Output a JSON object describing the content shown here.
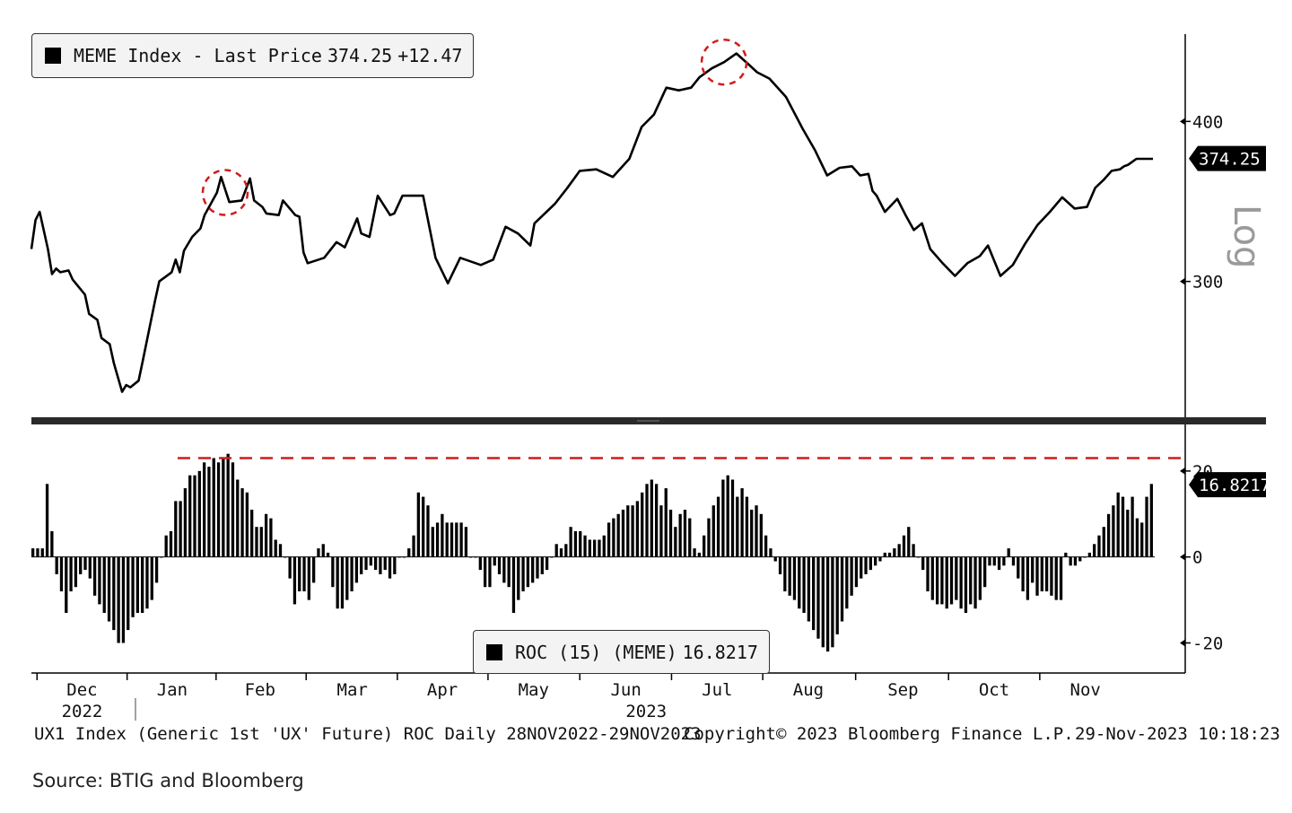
{
  "chart_data": [
    {
      "type": "line",
      "scale": "log",
      "title": "MEME Index - Last Price",
      "legend": {
        "name": "MEME Index - Last Price",
        "last": "374.25",
        "change": "+12.47"
      },
      "last_label": "374.25",
      "yticks": [
        300,
        400
      ],
      "ylim": [
        235,
        468
      ],
      "y_axis_label": "Log",
      "series": [
        {
          "name": "MEME Index",
          "x": [
            0,
            1,
            2,
            4,
            5,
            6,
            7,
            9,
            10,
            13,
            14,
            16,
            17,
            19,
            20,
            22,
            23,
            24,
            26,
            27,
            30,
            31,
            34,
            35,
            36,
            37,
            39,
            41,
            42,
            45,
            46,
            48,
            51,
            53,
            54,
            56,
            57,
            60,
            61,
            63,
            64,
            65,
            66,
            67,
            71,
            74,
            76,
            79,
            80,
            82,
            84,
            87,
            88,
            90,
            95,
            98,
            101,
            104,
            109,
            112,
            115,
            118,
            121,
            122,
            127,
            130,
            133,
            137,
            141,
            145,
            148,
            151,
            154,
            157,
            160,
            162,
            165,
            168,
            171,
            174,
            176,
            179,
            183,
            187,
            190,
            193,
            196,
            199,
            201,
            203,
            204,
            205,
            207,
            210,
            212,
            214,
            216,
            218,
            221,
            224,
            227,
            230,
            232,
            235,
            238,
            241,
            244,
            247,
            250,
            253,
            256,
            258,
            260,
            262,
            264,
            265,
            266,
            267,
            268,
            269,
            270,
            271,
            272
          ],
          "y": [
            318,
            335,
            340,
            318,
            304,
            307,
            305,
            306,
            301,
            293,
            283,
            280,
            271,
            268,
            259,
            246,
            249,
            248,
            251,
            260,
            290,
            300,
            305,
            312,
            305,
            317,
            325,
            330,
            338,
            352,
            362,
            346,
            347,
            361,
            347,
            343,
            339,
            338,
            347,
            341,
            338,
            337,
            316,
            310,
            313,
            322,
            319,
            336,
            327,
            325,
            350,
            338,
            339,
            350,
            350,
            313,
            299,
            313,
            309,
            312,
            331,
            327,
            320,
            333,
            345,
            355,
            366,
            367,
            362,
            374,
            396,
            405,
            425,
            423,
            425,
            433,
            440,
            445,
            452,
            443,
            437,
            432,
            418,
            395,
            380,
            363,
            368,
            369,
            363,
            364,
            353,
            350,
            340,
            348,
            338,
            329,
            333,
            318,
            310,
            303,
            310,
            314,
            320,
            303,
            309,
            321,
            332,
            340,
            349,
            342,
            343,
            355,
            360,
            366,
            367,
            369,
            370,
            372,
            374,
            374,
            374,
            374,
            374
          ]
        }
      ],
      "annotations": [
        {
          "type": "circle",
          "x": 47,
          "y": 352
        },
        {
          "type": "circle",
          "x": 168,
          "y": 445
        }
      ]
    },
    {
      "type": "bar",
      "title": "ROC (15) (MEME)",
      "legend": {
        "name": "ROC (15) (MEME)",
        "value": "16.8217"
      },
      "last_label": "16.8217",
      "yticks": [
        -20,
        0,
        20
      ],
      "ylim": [
        -27,
        30
      ],
      "reference_line": 23,
      "series": [
        {
          "name": "ROC (15)",
          "values": [
            2,
            2,
            2,
            17,
            6,
            -4,
            -8,
            -13,
            -8,
            -7,
            -4,
            -3,
            -5,
            -9,
            -11,
            -13,
            -15,
            -17,
            -20,
            -20,
            -17,
            -14,
            -13,
            -13,
            -12,
            -10,
            -6,
            0,
            5,
            6,
            13,
            13,
            16,
            19,
            19,
            20,
            22,
            21,
            23,
            22,
            23,
            24,
            22,
            18,
            16,
            15,
            11,
            7,
            7,
            10,
            9,
            4,
            3,
            0,
            -5,
            -11,
            -8,
            -8,
            -10,
            -6,
            2,
            3,
            1,
            -7,
            -12,
            -12,
            -10,
            -8,
            -6,
            -4,
            -3,
            -2,
            -3,
            -4,
            -3,
            -5,
            -4,
            0,
            0,
            2,
            5,
            15,
            14,
            12,
            7,
            8,
            10,
            8,
            8,
            8,
            8,
            7,
            0,
            0,
            -3,
            -7,
            -7,
            -2,
            -4,
            -6,
            -7,
            -13,
            -10,
            -8,
            -7,
            -6,
            -5,
            -4,
            -3,
            0,
            3,
            2,
            3,
            7,
            6,
            6,
            5,
            4,
            4,
            4,
            5,
            8,
            9,
            10,
            11,
            12,
            12,
            13,
            15,
            17,
            18,
            17,
            12,
            16,
            11,
            7,
            10,
            11,
            9,
            2,
            1,
            5,
            9,
            12,
            14,
            18,
            19,
            18,
            14,
            16,
            14,
            11,
            12,
            10,
            5,
            2,
            -1,
            -4,
            -8,
            -9,
            -10,
            -12,
            -13,
            -15,
            -17,
            -19,
            -21,
            -22,
            -21,
            -18,
            -15,
            -12,
            -9,
            -7,
            -5,
            -4,
            -3,
            -2,
            -1,
            1,
            1,
            2,
            3,
            5,
            7,
            3,
            0,
            -3,
            -8,
            -10,
            -11,
            -11,
            -12,
            -11,
            -10,
            -12,
            -13,
            -11,
            -12,
            -10,
            -7,
            -2,
            -2,
            -3,
            -2,
            2,
            -2,
            -5,
            -8,
            -10,
            -6,
            -9,
            -8,
            -8,
            -9,
            -10,
            -10,
            1,
            -2,
            -2,
            -1,
            0,
            1,
            3,
            5,
            7,
            10,
            12,
            15,
            14,
            11,
            14,
            9,
            8,
            14,
            17
          ]
        }
      ]
    }
  ],
  "x_axis": {
    "months": [
      {
        "label": "Dec",
        "frac": 0.045
      },
      {
        "label": "Jan",
        "frac": 0.125
      },
      {
        "label": "Feb",
        "frac": 0.203
      },
      {
        "label": "Mar",
        "frac": 0.285
      },
      {
        "label": "Apr",
        "frac": 0.365
      },
      {
        "label": "May",
        "frac": 0.446
      },
      {
        "label": "Jun",
        "frac": 0.528
      },
      {
        "label": "Jul",
        "frac": 0.609
      },
      {
        "label": "Aug",
        "frac": 0.69
      },
      {
        "label": "Sep",
        "frac": 0.774
      },
      {
        "label": "Oct",
        "frac": 0.855
      },
      {
        "label": "Nov",
        "frac": 0.936
      }
    ],
    "years": [
      {
        "label": "2022",
        "frac": 0.045
      },
      {
        "label": "2023",
        "frac": 0.546
      }
    ]
  },
  "footer": {
    "left": "UX1 Index (Generic 1st 'UX' Future) ROC  Daily 28NOV2022-29NOV2023",
    "center": "Copyright© 2023 Bloomberg Finance L.P.",
    "right": "29-Nov-2023 10:18:23"
  },
  "source": "Source: BTIG and Bloomberg",
  "colors": {
    "line": "#000000",
    "annotation": "#d11b1b",
    "panel_divider": "#2a2a2a"
  }
}
